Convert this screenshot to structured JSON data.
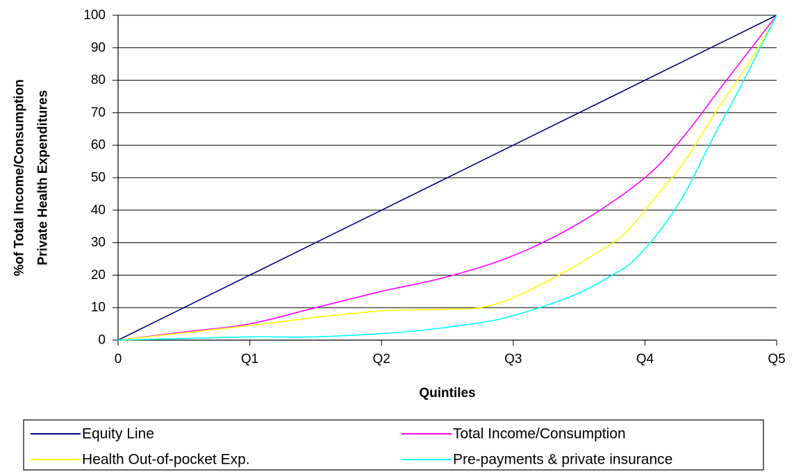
{
  "chart_data": {
    "type": "line",
    "title": "",
    "xlabel": "Quintiles",
    "ylabel_lines": [
      "%of Total Income/Consumption",
      "Private Health Expenditures"
    ],
    "categories": [
      "0",
      "Q1",
      "Q2",
      "Q3",
      "Q4",
      "Q5"
    ],
    "xlim": [
      0,
      5
    ],
    "ylim": [
      0,
      100
    ],
    "yticks": [
      0,
      10,
      20,
      30,
      40,
      50,
      60,
      70,
      80,
      90,
      100
    ],
    "grid": "horizontal",
    "legend_position": "bottom",
    "series": [
      {
        "name": "Equity Line",
        "color": "#000080",
        "x": [
          0,
          1,
          2,
          3,
          4,
          5
        ],
        "values": [
          0,
          20,
          40,
          60,
          80,
          100
        ]
      },
      {
        "name": "Total Income/Consumption",
        "color": "#ff00ff",
        "x": [
          0,
          0.5,
          1,
          1.5,
          2,
          2.5,
          3,
          3.5,
          4,
          4.3,
          4.6,
          5
        ],
        "values": [
          0,
          2.5,
          5,
          10,
          15,
          19.5,
          26,
          36,
          50,
          63,
          79,
          100
        ]
      },
      {
        "name": "Health Out-of-pocket Exp.",
        "color": "#ffff00",
        "x": [
          0,
          1,
          1.5,
          2,
          2.5,
          2.75,
          3,
          3.3,
          3.6,
          3.85,
          4.1,
          4.3,
          4.55,
          4.8,
          5
        ],
        "values": [
          0,
          4.5,
          7,
          9,
          9.5,
          10,
          13,
          19,
          26,
          33,
          45,
          55,
          71,
          86,
          100
        ]
      },
      {
        "name": "Pre-payments & private insurance",
        "color": "#00ffff",
        "x": [
          0,
          0.5,
          1,
          1.5,
          2,
          2.3,
          2.6,
          2.9,
          3.2,
          3.5,
          3.75,
          3.9,
          4.1,
          4.3,
          4.5,
          4.7,
          4.85,
          5
        ],
        "values": [
          0,
          0.5,
          1,
          1,
          2,
          3,
          4.5,
          6.5,
          10,
          14.5,
          20,
          24,
          33,
          45,
          61,
          76,
          88,
          100
        ]
      }
    ]
  }
}
